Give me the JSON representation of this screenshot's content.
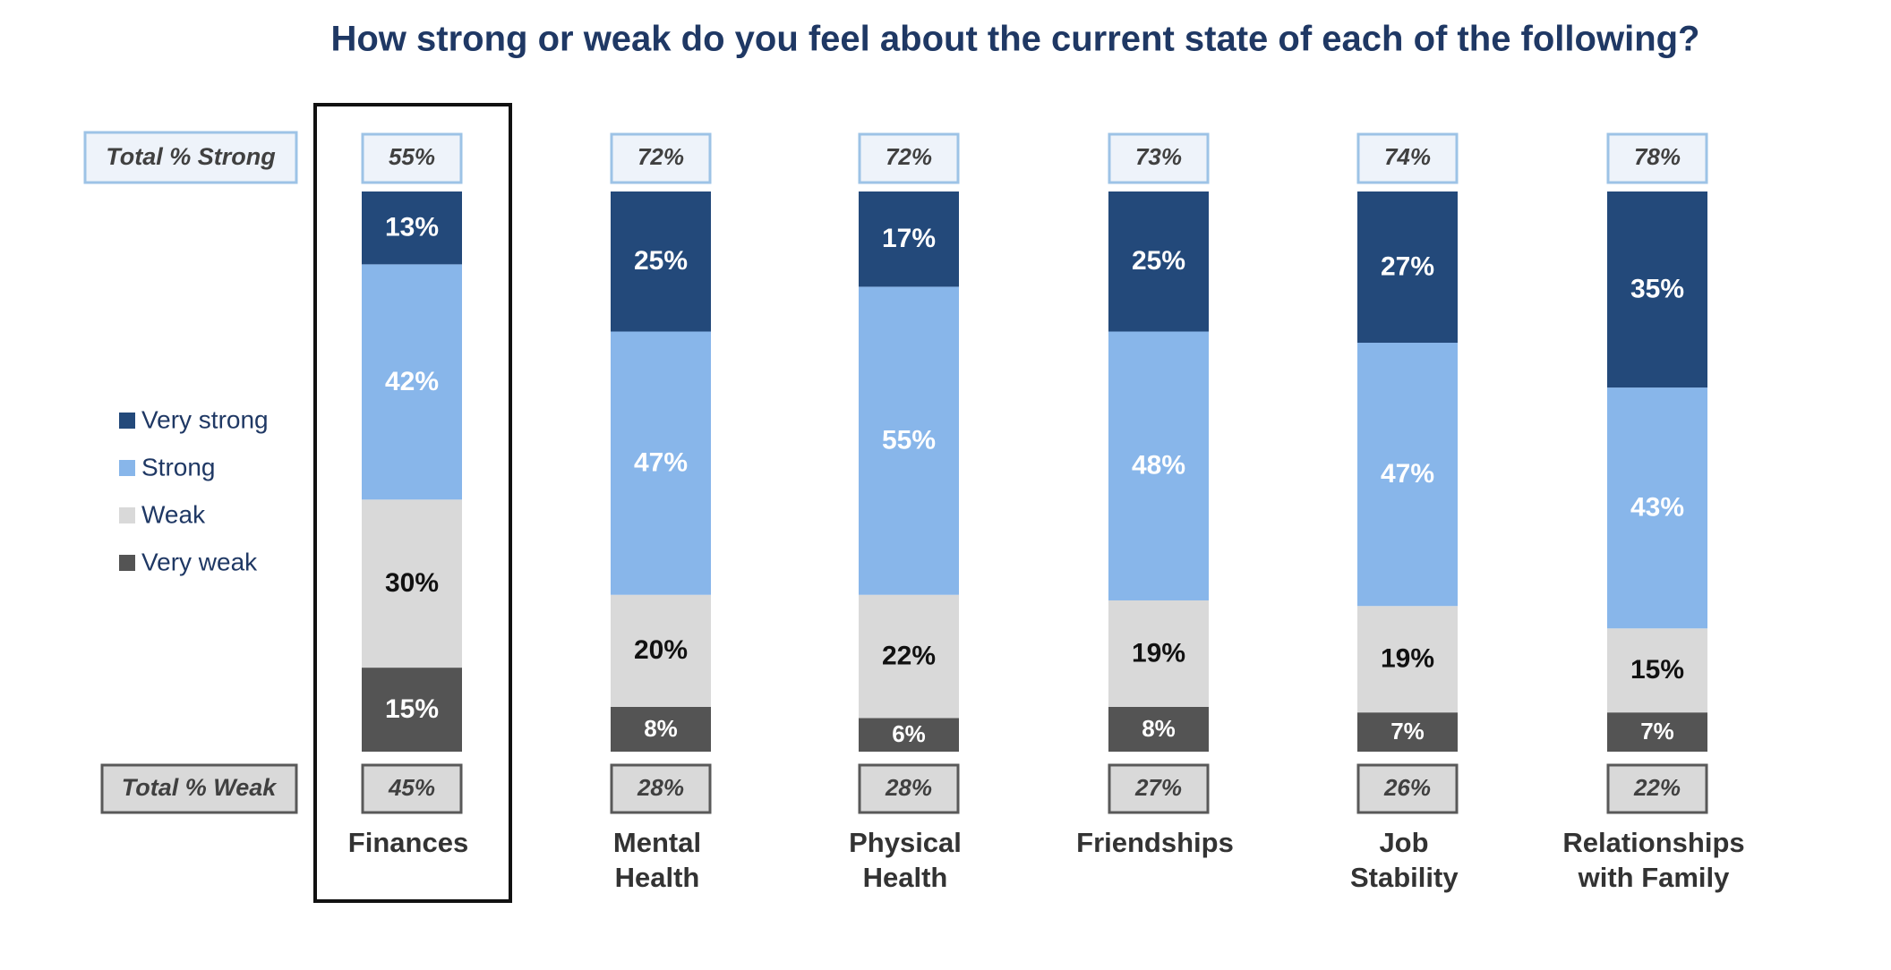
{
  "chart_data": {
    "type": "stacked_bar",
    "title": "How strong or weak do you feel about the current state of each of the following?",
    "categories": [
      "Finances",
      "Mental Health",
      "Physical Health",
      "Friendships",
      "Job Stability",
      "Relationships with Family"
    ],
    "series": [
      {
        "name": "Very strong",
        "color": "#23497a",
        "label_color": "#ffffff",
        "values": [
          13,
          25,
          17,
          25,
          27,
          35
        ],
        "value_labels": [
          "13%",
          "25%",
          "17%",
          "25%",
          "27%",
          "35%"
        ]
      },
      {
        "name": "Strong",
        "color": "#88b6ea",
        "label_color": "#ffffff",
        "values": [
          42,
          47,
          55,
          48,
          47,
          43
        ],
        "value_labels": [
          "42%",
          "47%",
          "55%",
          "48%",
          "47%",
          "43%"
        ]
      },
      {
        "name": "Weak",
        "color": "#d9d9d9",
        "label_color": "#111111",
        "values": [
          30,
          20,
          22,
          19,
          19,
          15
        ],
        "value_labels": [
          "30%",
          "20%",
          "22%",
          "19%",
          "19%",
          "15%"
        ]
      },
      {
        "name": "Very weak",
        "color": "#545454",
        "label_color": "#ffffff",
        "values": [
          15,
          8,
          6,
          8,
          7,
          7
        ],
        "value_labels": [
          "15%",
          "8%",
          "6%",
          "8%",
          "7%",
          "7%"
        ]
      }
    ],
    "total_strong": {
      "label": "Total % Strong",
      "values": [
        55,
        72,
        72,
        73,
        74,
        78
      ],
      "value_labels": [
        "55%",
        "72%",
        "72%",
        "73%",
        "74%",
        "78%"
      ]
    },
    "total_weak": {
      "label": "Total % Weak",
      "values": [
        45,
        28,
        28,
        27,
        26,
        22
      ],
      "value_labels": [
        "45%",
        "28%",
        "28%",
        "27%",
        "26%",
        "22%"
      ]
    },
    "ylim": [
      0,
      100
    ]
  }
}
